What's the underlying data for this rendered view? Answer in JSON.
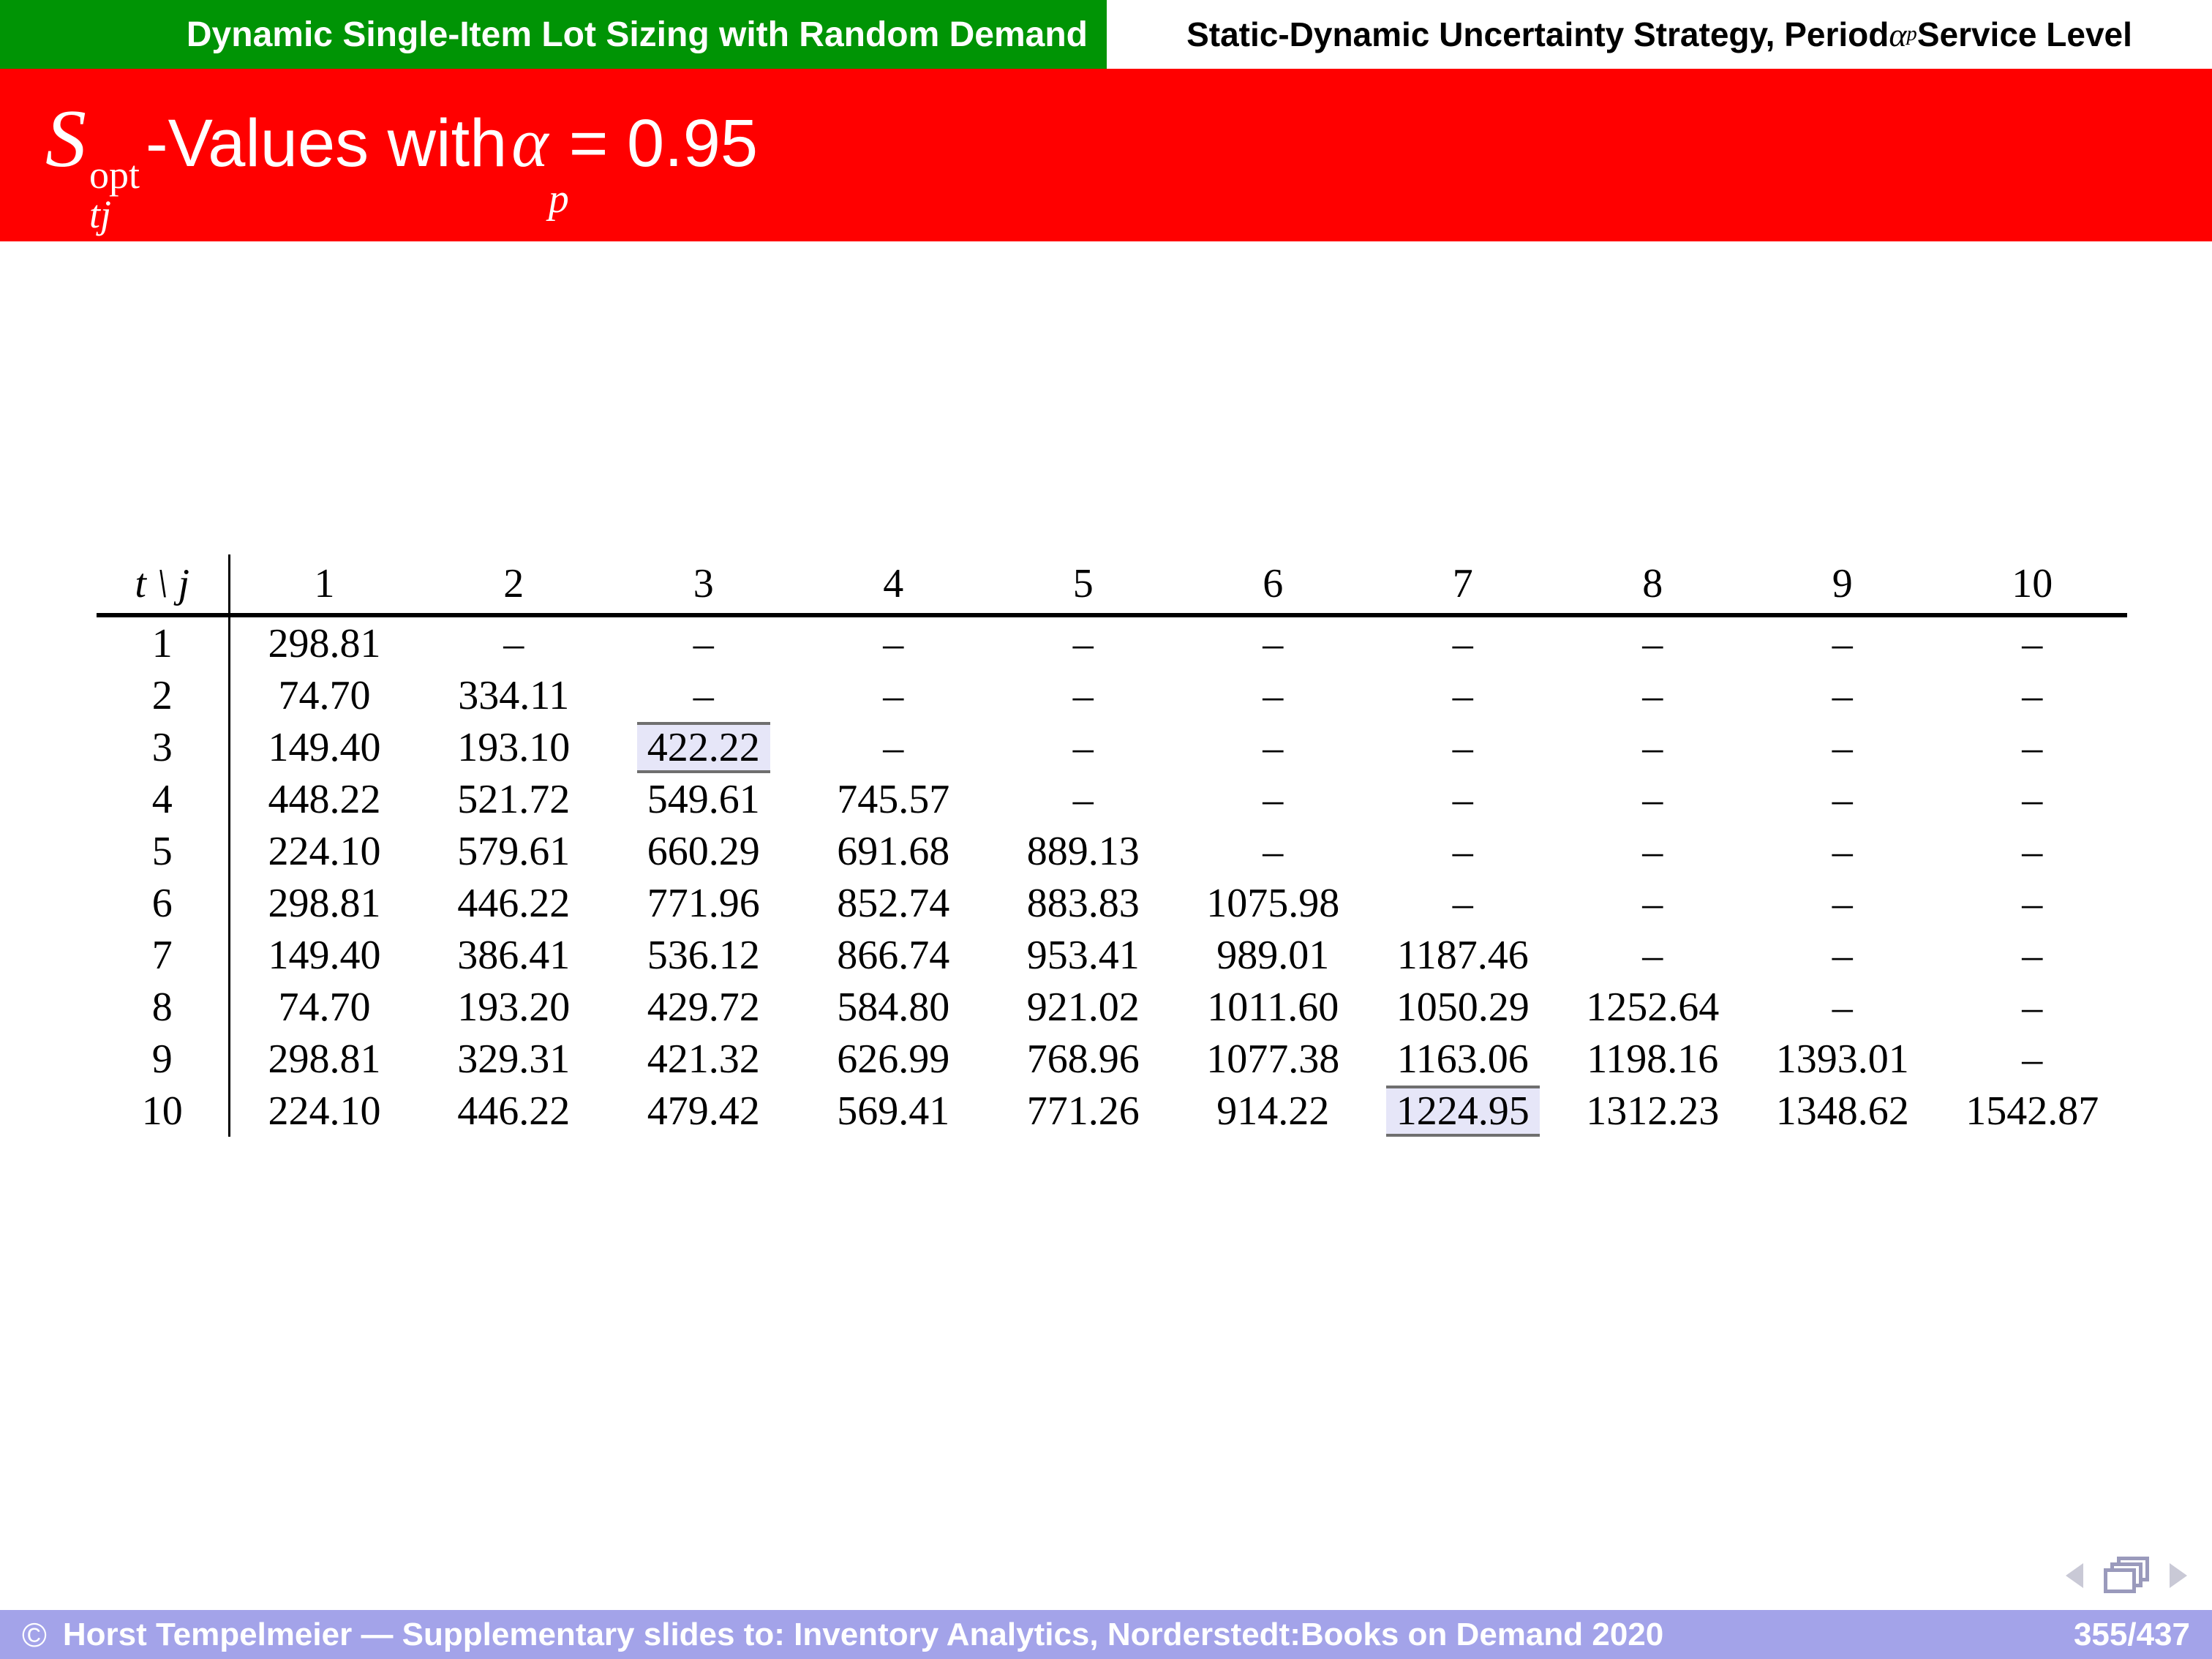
{
  "header": {
    "left": "Dynamic Single-Item Lot Sizing with Random Demand",
    "right_pre": "Static-Dynamic Uncertainty Strategy, Period ",
    "alpha": "α",
    "alpha_sub": "p",
    "right_post": " Service Level"
  },
  "title": {
    "S": "S",
    "sup": "opt",
    "sub": "tj",
    "mid": "-Values with ",
    "alpha": "α",
    "alpha_sub": "p",
    "end": " = 0.95"
  },
  "table": {
    "corner": "t \\ j",
    "col_headers": [
      "1",
      "2",
      "3",
      "4",
      "5",
      "6",
      "7",
      "8",
      "9",
      "10"
    ],
    "rows": [
      {
        "t": "1",
        "values": [
          "298.81",
          "–",
          "–",
          "–",
          "–",
          "–",
          "–",
          "–",
          "–",
          "–"
        ]
      },
      {
        "t": "2",
        "values": [
          "74.70",
          "334.11",
          "–",
          "–",
          "–",
          "–",
          "–",
          "–",
          "–",
          "–"
        ]
      },
      {
        "t": "3",
        "values": [
          "149.40",
          "193.10",
          "422.22",
          "–",
          "–",
          "–",
          "–",
          "–",
          "–",
          "–"
        ]
      },
      {
        "t": "4",
        "values": [
          "448.22",
          "521.72",
          "549.61",
          "745.57",
          "–",
          "–",
          "–",
          "–",
          "–",
          "–"
        ]
      },
      {
        "t": "5",
        "values": [
          "224.10",
          "579.61",
          "660.29",
          "691.68",
          "889.13",
          "–",
          "–",
          "–",
          "–",
          "–"
        ]
      },
      {
        "t": "6",
        "values": [
          "298.81",
          "446.22",
          "771.96",
          "852.74",
          "883.83",
          "1075.98",
          "–",
          "–",
          "–",
          "–"
        ]
      },
      {
        "t": "7",
        "values": [
          "149.40",
          "386.41",
          "536.12",
          "866.74",
          "953.41",
          "989.01",
          "1187.46",
          "–",
          "–",
          "–"
        ]
      },
      {
        "t": "8",
        "values": [
          "74.70",
          "193.20",
          "429.72",
          "584.80",
          "921.02",
          "1011.60",
          "1050.29",
          "1252.64",
          "–",
          "–"
        ]
      },
      {
        "t": "9",
        "values": [
          "298.81",
          "329.31",
          "421.32",
          "626.99",
          "768.96",
          "1077.38",
          "1163.06",
          "1198.16",
          "1393.01",
          "–"
        ]
      },
      {
        "t": "10",
        "values": [
          "224.10",
          "446.22",
          "479.42",
          "569.41",
          "771.26",
          "914.22",
          "1224.95",
          "1312.23",
          "1348.62",
          "1542.87"
        ]
      }
    ],
    "highlights": [
      {
        "row": 2,
        "col": 2
      },
      {
        "row": 9,
        "col": 6
      }
    ]
  },
  "nav": {
    "back": "triangle-left",
    "frames": "overlapping-frames",
    "forward": "triangle-right"
  },
  "footer": {
    "copyright": "©",
    "text": "Horst Tempelmeier — Supplementary slides to: Inventory Analytics, Norderstedt:Books on Demand 2020",
    "page": "355/437"
  },
  "colors": {
    "header_green": "#009405",
    "title_red": "#ff0000",
    "footer_lavender": "#a3a3e9",
    "highlight_bg": "#e6e6f8",
    "highlight_border": "#6f6f6f",
    "nav_triangle": "#c9c9d6",
    "nav_frames": "#9a9abc"
  }
}
